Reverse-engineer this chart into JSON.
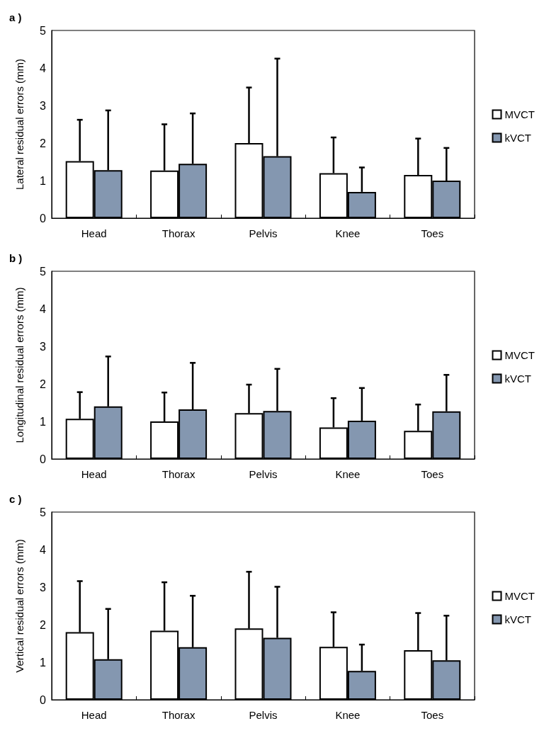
{
  "chart_data": [
    {
      "type": "bar",
      "title": "a )",
      "ylabel": "Lateral residual errors (mm)",
      "categories": [
        "Head",
        "Thorax",
        "Pelvis",
        "Knee",
        "Toes"
      ],
      "ylim": [
        0,
        5
      ],
      "yticks": [
        0,
        1,
        2,
        3,
        4,
        5
      ],
      "grid": false,
      "legend": "right",
      "series": [
        {
          "name": "MVCT",
          "color": "#ffffff",
          "values": [
            1.52,
            1.27,
            2.0,
            1.2,
            1.15
          ],
          "errors": [
            [
              1.52,
              2.62
            ],
            [
              1.27,
              2.5
            ],
            [
              2.0,
              3.48
            ],
            [
              1.2,
              2.15
            ],
            [
              1.15,
              2.12
            ]
          ]
        },
        {
          "name": "kVCT",
          "color": "#8497b0",
          "values": [
            1.28,
            1.45,
            1.65,
            0.7,
            1.0
          ],
          "errors": [
            [
              1.28,
              2.87
            ],
            [
              1.45,
              2.79
            ],
            [
              1.65,
              4.25
            ],
            [
              0.7,
              1.35
            ],
            [
              1.0,
              1.87
            ]
          ]
        }
      ]
    },
    {
      "type": "bar",
      "title": "b )",
      "ylabel": "Longitudinal residual errors (mm)",
      "categories": [
        "Head",
        "Thorax",
        "Pelvis",
        "Knee",
        "Toes"
      ],
      "ylim": [
        0,
        5
      ],
      "yticks": [
        0,
        1,
        2,
        3,
        4,
        5
      ],
      "grid": false,
      "legend": "right",
      "series": [
        {
          "name": "MVCT",
          "color": "#ffffff",
          "values": [
            1.07,
            1.0,
            1.22,
            0.84,
            0.75
          ],
          "errors": [
            [
              1.07,
              1.78
            ],
            [
              1.0,
              1.77
            ],
            [
              1.22,
              1.98
            ],
            [
              0.84,
              1.62
            ],
            [
              0.75,
              1.45
            ]
          ]
        },
        {
          "name": "kVCT",
          "color": "#8497b0",
          "values": [
            1.4,
            1.32,
            1.28,
            1.02,
            1.27
          ],
          "errors": [
            [
              1.4,
              2.73
            ],
            [
              1.32,
              2.56
            ],
            [
              1.28,
              2.4
            ],
            [
              1.02,
              1.89
            ],
            [
              1.27,
              2.24
            ]
          ]
        }
      ]
    },
    {
      "type": "bar",
      "title": "c )",
      "ylabel": "Vertical residual errors (mm)",
      "categories": [
        "Head",
        "Thorax",
        "Pelvis",
        "Knee",
        "Toes"
      ],
      "ylim": [
        0,
        5
      ],
      "yticks": [
        0,
        1,
        2,
        3,
        4,
        5
      ],
      "grid": false,
      "legend": "right",
      "series": [
        {
          "name": "MVCT",
          "color": "#ffffff",
          "values": [
            1.8,
            1.84,
            1.9,
            1.41,
            1.32
          ],
          "errors": [
            [
              1.8,
              3.16
            ],
            [
              1.84,
              3.13
            ],
            [
              1.9,
              3.41
            ],
            [
              1.41,
              2.33
            ],
            [
              1.32,
              2.31
            ]
          ]
        },
        {
          "name": "kVCT",
          "color": "#8497b0",
          "values": [
            1.08,
            1.4,
            1.65,
            0.77,
            1.05
          ],
          "errors": [
            [
              1.08,
              2.42
            ],
            [
              1.4,
              2.77
            ],
            [
              1.65,
              3.01
            ],
            [
              0.77,
              1.47
            ],
            [
              1.05,
              2.24
            ]
          ]
        }
      ]
    }
  ]
}
